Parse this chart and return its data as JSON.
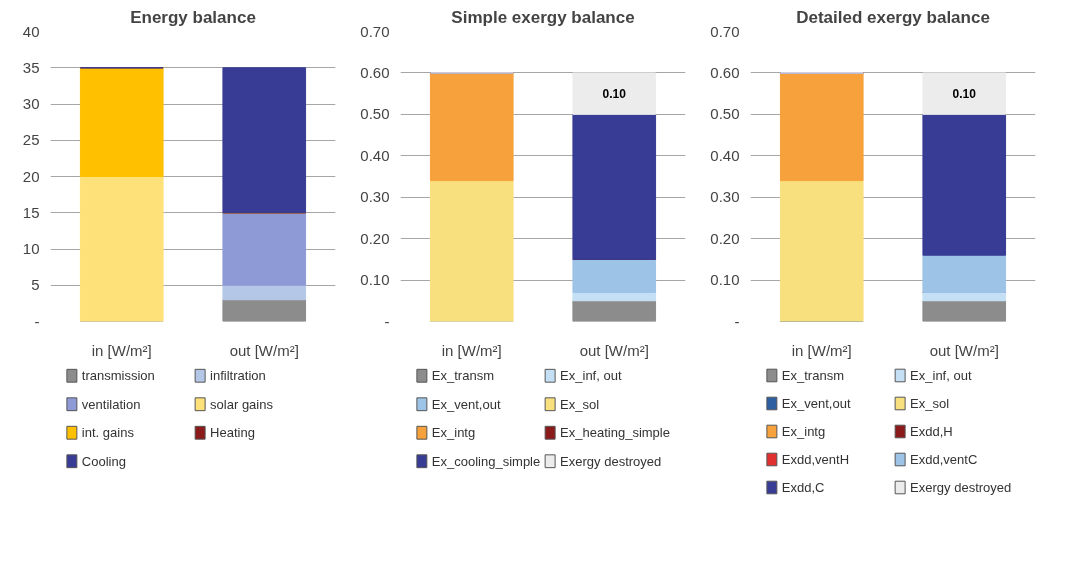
{
  "chart_data": [
    {
      "type": "bar",
      "title": "Energy balance",
      "stacked": true,
      "categories": [
        "in [W/m²]",
        "out [W/m²]"
      ],
      "ylim": [
        0,
        40
      ],
      "yticks": [
        {
          "value": 0,
          "label": "-"
        },
        5,
        10,
        15,
        20,
        25,
        30,
        35,
        40
      ],
      "grid": "y",
      "legend": "bottom",
      "series": [
        {
          "name": "transmission",
          "color": "#8c8c8c",
          "values": [
            0,
            3
          ]
        },
        {
          "name": "infiltration",
          "color": "#b4c7e7",
          "values": [
            0,
            2
          ]
        },
        {
          "name": "ventilation",
          "color": "#8e9ad6",
          "values": [
            0,
            10
          ]
        },
        {
          "name": "solar gains",
          "color": "#ffe17a",
          "values": [
            20,
            0
          ]
        },
        {
          "name": "int. gains",
          "color": "#ffc000",
          "values": [
            15,
            0
          ]
        },
        {
          "name": "Heating",
          "color": "#8b1a1a",
          "values": [
            0,
            0
          ]
        },
        {
          "name": "Cooling",
          "color": "#383c94",
          "values": [
            0,
            20
          ]
        }
      ]
    },
    {
      "type": "bar",
      "title": "Simple exergy balance",
      "stacked": true,
      "categories": [
        "in [W/m²]",
        "out [W/m²]"
      ],
      "ylim": [
        0,
        0.7
      ],
      "yticks": [
        {
          "value": 0,
          "label": "-"
        },
        {
          "value": 0.1,
          "label": "0.10"
        },
        {
          "value": 0.2,
          "label": "0.20"
        },
        {
          "value": 0.3,
          "label": "0.30"
        },
        {
          "value": 0.4,
          "label": "0.40"
        },
        {
          "value": 0.5,
          "label": "0.50"
        },
        {
          "value": 0.6,
          "label": "0.60"
        },
        {
          "value": 0.7,
          "label": "0.70"
        }
      ],
      "grid": "y",
      "legend": "bottom",
      "series": [
        {
          "name": "Ex_transm",
          "color": "#8c8c8c",
          "values": [
            0,
            0.05
          ]
        },
        {
          "name": "Ex_inf, out",
          "color": "#c5e0f5",
          "values": [
            0,
            0.02
          ]
        },
        {
          "name": "Ex_vent,out",
          "color": "#9dc3e6",
          "values": [
            0,
            0.08
          ]
        },
        {
          "name": "Ex_sol",
          "color": "#f9e07f",
          "values": [
            0.34,
            0
          ]
        },
        {
          "name": "Ex_intg",
          "color": "#f7a13c",
          "values": [
            0.26,
            0
          ]
        },
        {
          "name": "Ex_heating_simple",
          "color": "#8b1a1a",
          "values": [
            0,
            0
          ]
        },
        {
          "name": "Ex_cooling_simple",
          "color": "#383c94",
          "values": [
            0,
            0.35
          ]
        },
        {
          "name": "Exergy destroyed",
          "color": "#ececec",
          "values": [
            0,
            0.1
          ],
          "value_labels": [
            null,
            "0.10"
          ]
        }
      ]
    },
    {
      "type": "bar",
      "title": "Detailed exergy balance",
      "stacked": true,
      "categories": [
        "in [W/m²]",
        "out [W/m²]"
      ],
      "ylim": [
        0,
        0.7
      ],
      "yticks": [
        {
          "value": 0,
          "label": "-"
        },
        {
          "value": 0.1,
          "label": "0.10"
        },
        {
          "value": 0.2,
          "label": "0.20"
        },
        {
          "value": 0.3,
          "label": "0.30"
        },
        {
          "value": 0.4,
          "label": "0.40"
        },
        {
          "value": 0.5,
          "label": "0.50"
        },
        {
          "value": 0.6,
          "label": "0.60"
        },
        {
          "value": 0.7,
          "label": "0.70"
        }
      ],
      "grid": "y",
      "legend": "bottom",
      "series": [
        {
          "name": "Ex_transm",
          "color": "#8c8c8c",
          "values": [
            0,
            0.05
          ]
        },
        {
          "name": "Ex_inf, out",
          "color": "#c5e0f5",
          "values": [
            0,
            0.02
          ]
        },
        {
          "name": "Ex_vent,out",
          "color": "#2e5fa0",
          "values": [
            0,
            0
          ]
        },
        {
          "name": "Ex_sol",
          "color": "#f9e07f",
          "values": [
            0.34,
            0
          ]
        },
        {
          "name": "Ex_intg",
          "color": "#f7a13c",
          "values": [
            0.26,
            0
          ]
        },
        {
          "name": "Exdd,H",
          "color": "#8b1a1a",
          "values": [
            0,
            0
          ]
        },
        {
          "name": "Exdd,ventH",
          "color": "#e0302f",
          "values": [
            0,
            0
          ]
        },
        {
          "name": "Exdd,ventC",
          "color": "#9dc3e6",
          "values": [
            0,
            0.09
          ]
        },
        {
          "name": "Exdd,C",
          "color": "#383c94",
          "values": [
            0,
            0.34
          ]
        },
        {
          "name": "Exergy destroyed",
          "color": "#ececec",
          "values": [
            0,
            0.1
          ],
          "value_labels": [
            null,
            "0.10"
          ]
        }
      ]
    }
  ]
}
